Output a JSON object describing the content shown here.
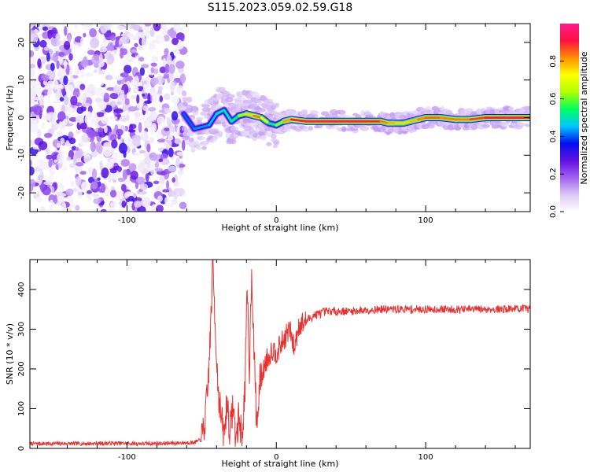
{
  "title": "S115.2023.059.02.59.G18",
  "colors": {
    "snr_line": "#e83232",
    "colormap": [
      "#ffffff",
      "#dcc8f5",
      "#a060f0",
      "#6010e0",
      "#0010f0",
      "#00c8ff",
      "#00ff60",
      "#b0ff00",
      "#ffff00",
      "#ff9000",
      "#ff1040",
      "#ff1a8c"
    ]
  },
  "chart_data": [
    {
      "type": "heatmap",
      "panel": "spectrogram",
      "xlabel": "Height of straight line (km)",
      "ylabel": "Frequency (Hz)",
      "xlim": [
        -165,
        170
      ],
      "ylim": [
        -25,
        25
      ],
      "xticks": [
        -100,
        0,
        100
      ],
      "yticks": [
        -20,
        -10,
        0,
        10,
        20
      ],
      "colorbar": {
        "label": "Normalized spectral amplitude",
        "range": [
          0.0,
          1.0
        ],
        "ticks": [
          "0.0",
          "0.2",
          "0.4",
          "0.6",
          "0.8"
        ]
      },
      "noise_region_x": [
        -165,
        -62
      ],
      "ridge": {
        "x": [
          -62,
          -55,
          -45,
          -40,
          -35,
          -30,
          -25,
          -20,
          -15,
          -10,
          -5,
          0,
          5,
          10,
          20,
          40,
          60,
          70,
          75,
          80,
          85,
          90,
          95,
          100,
          110,
          120,
          130,
          140,
          150,
          160,
          170
        ],
        "freq": [
          1,
          -3,
          -2,
          1,
          2,
          -1,
          0.5,
          1,
          0.5,
          0,
          -1.5,
          -2,
          -1,
          -0.5,
          -1,
          -1,
          -1,
          -1,
          -1.5,
          -1.5,
          -1.5,
          -1,
          -0.5,
          0,
          0,
          -0.5,
          -0.5,
          0,
          0,
          0,
          0
        ],
        "amplitude": [
          0.4,
          0.45,
          0.45,
          0.5,
          0.55,
          0.5,
          0.6,
          0.75,
          0.85,
          0.9,
          0.6,
          0.5,
          0.8,
          0.9,
          1.0,
          1.0,
          1.0,
          0.9,
          0.85,
          0.8,
          0.8,
          0.8,
          0.85,
          0.9,
          0.9,
          0.85,
          0.9,
          0.95,
          1.0,
          1.0,
          1.0
        ]
      }
    },
    {
      "type": "line",
      "panel": "snr",
      "xlabel": "Height of straight line (km)",
      "ylabel": "SNR (10 * v/v)",
      "xlim": [
        -165,
        170
      ],
      "ylim": [
        0,
        475
      ],
      "xticks": [
        -100,
        0,
        100
      ],
      "yticks": [
        0,
        100,
        200,
        300,
        400
      ],
      "series": [
        {
          "x": [
            -165,
            -150,
            -130,
            -110,
            -90,
            -70,
            -55,
            -50,
            -48,
            -46,
            -44,
            -42.5,
            -41,
            -39,
            -37,
            -35,
            -33,
            -31,
            -29,
            -27,
            -25,
            -23,
            -21,
            -19.5,
            -18,
            -16.5,
            -15,
            -13,
            -11,
            -9,
            -7,
            -5,
            -3,
            0,
            3,
            6,
            9,
            12,
            15,
            20,
            25,
            30,
            35,
            40,
            50,
            60,
            70,
            80,
            90,
            100,
            110,
            120,
            130,
            140,
            150,
            160,
            170
          ],
          "y": [
            12,
            12,
            12,
            13,
            12,
            13,
            15,
            22,
            60,
            140,
            300,
            470,
            320,
            150,
            80,
            30,
            120,
            40,
            110,
            20,
            80,
            30,
            150,
            400,
            200,
            460,
            250,
            50,
            170,
            190,
            220,
            230,
            250,
            240,
            260,
            280,
            300,
            250,
            310,
            320,
            335,
            340,
            345,
            345,
            345,
            348,
            350,
            350,
            350,
            350,
            350,
            350,
            350,
            350,
            350,
            352,
            350
          ]
        }
      ]
    }
  ]
}
